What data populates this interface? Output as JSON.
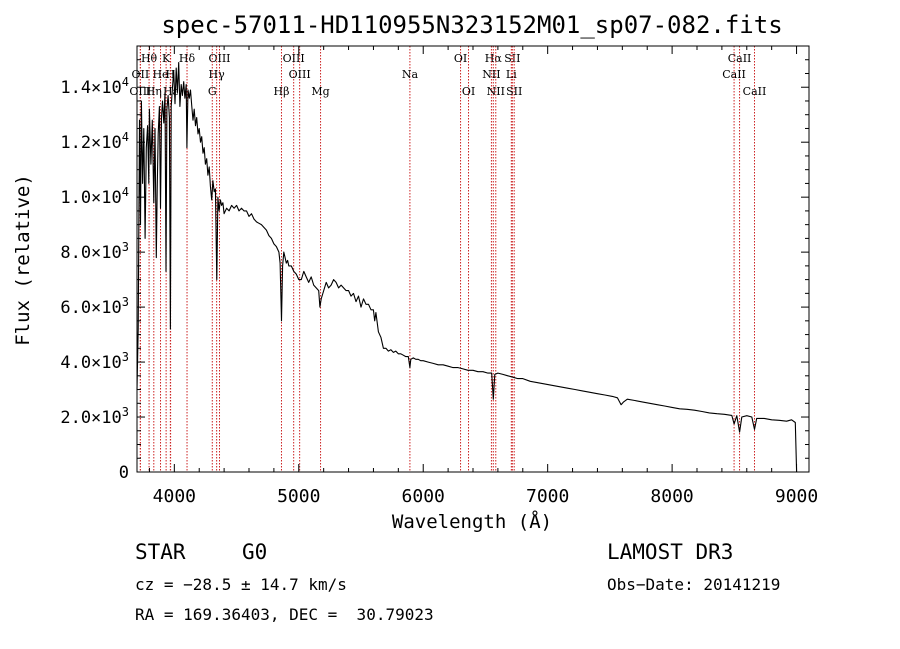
{
  "chart_data": {
    "type": "line",
    "title": "spec-57011-HD110955N323152M01_sp07-082.fits",
    "xlabel": "Wavelength (Å)",
    "ylabel": "Flux (relative)",
    "xlim": [
      3700,
      9100
    ],
    "ylim": [
      0,
      15500
    ],
    "x_ticks": [
      4000,
      5000,
      6000,
      7000,
      8000,
      9000
    ],
    "y_ticks": [
      {
        "value": 0,
        "mant": "0",
        "exp": ""
      },
      {
        "value": 2000,
        "mant": "2.0×10",
        "exp": "3"
      },
      {
        "value": 4000,
        "mant": "4.0×10",
        "exp": "3"
      },
      {
        "value": 6000,
        "mant": "6.0×10",
        "exp": "3"
      },
      {
        "value": 8000,
        "mant": "8.0×10",
        "exp": "3"
      },
      {
        "value": 10000,
        "mant": "1.0×10",
        "exp": "4"
      },
      {
        "value": 12000,
        "mant": "1.2×10",
        "exp": "4"
      },
      {
        "value": 14000,
        "mant": "1.4×10",
        "exp": "4"
      }
    ],
    "series": [
      {
        "name": "flux",
        "points": [
          [
            3700,
            3000
          ],
          [
            3710,
            5200
          ],
          [
            3720,
            12800
          ],
          [
            3728,
            9000
          ],
          [
            3735,
            13500
          ],
          [
            3745,
            10500
          ],
          [
            3755,
            12500
          ],
          [
            3765,
            8500
          ],
          [
            3775,
            11800
          ],
          [
            3785,
            12600
          ],
          [
            3795,
            10500
          ],
          [
            3800,
            13200
          ],
          [
            3812,
            11200
          ],
          [
            3823,
            12800
          ],
          [
            3835,
            9800
          ],
          [
            3845,
            12500
          ],
          [
            3855,
            7800
          ],
          [
            3862,
            10300
          ],
          [
            3870,
            12300
          ],
          [
            3880,
            13300
          ],
          [
            3889,
            9600
          ],
          [
            3897,
            12900
          ],
          [
            3905,
            13500
          ],
          [
            3915,
            12700
          ],
          [
            3925,
            13800
          ],
          [
            3933,
            7300
          ],
          [
            3940,
            13200
          ],
          [
            3950,
            13700
          ],
          [
            3960,
            12900
          ],
          [
            3968,
            5200
          ],
          [
            3975,
            13300
          ],
          [
            3985,
            14000
          ],
          [
            3995,
            14600
          ],
          [
            4005,
            13400
          ],
          [
            4015,
            14700
          ],
          [
            4025,
            13800
          ],
          [
            4035,
            14900
          ],
          [
            4045,
            13300
          ],
          [
            4055,
            14100
          ],
          [
            4065,
            13700
          ],
          [
            4075,
            14200
          ],
          [
            4085,
            13600
          ],
          [
            4095,
            14100
          ],
          [
            4101,
            11800
          ],
          [
            4110,
            13900
          ],
          [
            4120,
            13600
          ],
          [
            4130,
            13900
          ],
          [
            4140,
            13300
          ],
          [
            4150,
            12800
          ],
          [
            4160,
            13200
          ],
          [
            4170,
            12600
          ],
          [
            4180,
            12900
          ],
          [
            4190,
            12300
          ],
          [
            4200,
            12500
          ],
          [
            4210,
            12000
          ],
          [
            4220,
            12200
          ],
          [
            4230,
            11600
          ],
          [
            4240,
            11800
          ],
          [
            4250,
            11200
          ],
          [
            4260,
            11400
          ],
          [
            4270,
            10800
          ],
          [
            4280,
            11100
          ],
          [
            4290,
            10400
          ],
          [
            4300,
            9900
          ],
          [
            4310,
            10600
          ],
          [
            4320,
            10200
          ],
          [
            4330,
            10300
          ],
          [
            4341,
            7000
          ],
          [
            4350,
            10000
          ],
          [
            4360,
            9500
          ],
          [
            4370,
            9900
          ],
          [
            4380,
            9700
          ],
          [
            4390,
            9800
          ],
          [
            4400,
            9400
          ],
          [
            4420,
            9600
          ],
          [
            4440,
            9500
          ],
          [
            4460,
            9700
          ],
          [
            4480,
            9600
          ],
          [
            4500,
            9700
          ],
          [
            4520,
            9500
          ],
          [
            4540,
            9600
          ],
          [
            4560,
            9500
          ],
          [
            4580,
            9500
          ],
          [
            4600,
            9300
          ],
          [
            4620,
            9400
          ],
          [
            4640,
            9200
          ],
          [
            4660,
            9100
          ],
          [
            4680,
            9050
          ],
          [
            4700,
            9000
          ],
          [
            4720,
            8900
          ],
          [
            4740,
            8800
          ],
          [
            4760,
            8600
          ],
          [
            4780,
            8500
          ],
          [
            4800,
            8300
          ],
          [
            4820,
            8200
          ],
          [
            4840,
            8000
          ],
          [
            4850,
            7600
          ],
          [
            4861,
            5500
          ],
          [
            4870,
            7500
          ],
          [
            4880,
            8000
          ],
          [
            4890,
            7800
          ],
          [
            4900,
            7600
          ],
          [
            4910,
            7700
          ],
          [
            4920,
            7500
          ],
          [
            4940,
            7500
          ],
          [
            4960,
            7300
          ],
          [
            4980,
            7200
          ],
          [
            5000,
            7000
          ],
          [
            5020,
            7000
          ],
          [
            5040,
            7300
          ],
          [
            5060,
            7100
          ],
          [
            5080,
            6900
          ],
          [
            5100,
            7100
          ],
          [
            5120,
            6800
          ],
          [
            5140,
            6700
          ],
          [
            5160,
            6600
          ],
          [
            5170,
            6000
          ],
          [
            5180,
            6300
          ],
          [
            5200,
            6600
          ],
          [
            5220,
            6900
          ],
          [
            5240,
            6700
          ],
          [
            5260,
            6800
          ],
          [
            5280,
            7000
          ],
          [
            5300,
            6900
          ],
          [
            5320,
            6700
          ],
          [
            5340,
            6800
          ],
          [
            5360,
            6700
          ],
          [
            5380,
            6600
          ],
          [
            5400,
            6600
          ],
          [
            5420,
            6400
          ],
          [
            5440,
            6500
          ],
          [
            5460,
            6200
          ],
          [
            5480,
            6400
          ],
          [
            5500,
            6000
          ],
          [
            5520,
            6300
          ],
          [
            5540,
            6100
          ],
          [
            5560,
            6100
          ],
          [
            5580,
            5900
          ],
          [
            5600,
            5900
          ],
          [
            5610,
            5500
          ],
          [
            5620,
            5800
          ],
          [
            5640,
            5100
          ],
          [
            5660,
            4900
          ],
          [
            5680,
            4500
          ],
          [
            5700,
            4500
          ],
          [
            5720,
            4400
          ],
          [
            5740,
            4450
          ],
          [
            5760,
            4350
          ],
          [
            5780,
            4400
          ],
          [
            5800,
            4300
          ],
          [
            5820,
            4300
          ],
          [
            5840,
            4250
          ],
          [
            5860,
            4200
          ],
          [
            5880,
            4200
          ],
          [
            5893,
            3800
          ],
          [
            5900,
            4100
          ],
          [
            5920,
            4150
          ],
          [
            5940,
            4100
          ],
          [
            5960,
            4100
          ],
          [
            5980,
            4050
          ],
          [
            6000,
            4050
          ],
          [
            6040,
            4000
          ],
          [
            6080,
            3950
          ],
          [
            6120,
            3900
          ],
          [
            6160,
            3900
          ],
          [
            6200,
            3850
          ],
          [
            6240,
            3800
          ],
          [
            6280,
            3800
          ],
          [
            6320,
            3750
          ],
          [
            6360,
            3700
          ],
          [
            6400,
            3700
          ],
          [
            6440,
            3650
          ],
          [
            6480,
            3650
          ],
          [
            6520,
            3600
          ],
          [
            6550,
            3600
          ],
          [
            6563,
            2650
          ],
          [
            6575,
            3550
          ],
          [
            6600,
            3600
          ],
          [
            6640,
            3550
          ],
          [
            6680,
            3500
          ],
          [
            6720,
            3450
          ],
          [
            6760,
            3400
          ],
          [
            6800,
            3400
          ],
          [
            6860,
            3300
          ],
          [
            6920,
            3250
          ],
          [
            6980,
            3200
          ],
          [
            7040,
            3150
          ],
          [
            7100,
            3100
          ],
          [
            7160,
            3050
          ],
          [
            7220,
            3000
          ],
          [
            7280,
            2950
          ],
          [
            7340,
            2900
          ],
          [
            7400,
            2850
          ],
          [
            7460,
            2800
          ],
          [
            7520,
            2750
          ],
          [
            7560,
            2700
          ],
          [
            7590,
            2450
          ],
          [
            7610,
            2550
          ],
          [
            7640,
            2650
          ],
          [
            7700,
            2600
          ],
          [
            7760,
            2550
          ],
          [
            7820,
            2500
          ],
          [
            7880,
            2450
          ],
          [
            7940,
            2400
          ],
          [
            8000,
            2350
          ],
          [
            8060,
            2300
          ],
          [
            8120,
            2280
          ],
          [
            8180,
            2250
          ],
          [
            8240,
            2200
          ],
          [
            8300,
            2150
          ],
          [
            8360,
            2120
          ],
          [
            8420,
            2100
          ],
          [
            8480,
            2060
          ],
          [
            8498,
            1750
          ],
          [
            8520,
            2050
          ],
          [
            8542,
            1450
          ],
          [
            8560,
            2000
          ],
          [
            8600,
            2050
          ],
          [
            8640,
            2000
          ],
          [
            8662,
            1550
          ],
          [
            8680,
            1950
          ],
          [
            8740,
            1950
          ],
          [
            8800,
            1900
          ],
          [
            8860,
            1880
          ],
          [
            8920,
            1850
          ],
          [
            8960,
            1900
          ],
          [
            8990,
            1800
          ],
          [
            9000,
            0
          ]
        ]
      }
    ],
    "line_markers": [
      {
        "label": "Hθ",
        "wavelength": 3797,
        "row": 1
      },
      {
        "label": "K",
        "wavelength": 3934,
        "row": 1
      },
      {
        "label": "Hδ",
        "wavelength": 4102,
        "row": 1
      },
      {
        "label": "OIII",
        "wavelength": 4363,
        "row": 1
      },
      {
        "label": "OIII",
        "wavelength": 4959,
        "row": 1
      },
      {
        "label": "OI",
        "wavelength": 6300,
        "row": 1
      },
      {
        "label": "Hα",
        "wavelength": 6563,
        "row": 1
      },
      {
        "label": "SII",
        "wavelength": 6716,
        "row": 1
      },
      {
        "label": "CaII",
        "wavelength": 8542,
        "row": 1
      },
      {
        "label": "OII",
        "wavelength": 3727,
        "row": 2
      },
      {
        "label": "He",
        "wavelength": 3889,
        "row": 2
      },
      {
        "label": "H",
        "wavelength": 3968,
        "row": 2
      },
      {
        "label": "Hγ",
        "wavelength": 4340,
        "row": 2
      },
      {
        "label": "OIII",
        "wavelength": 5007,
        "row": 2
      },
      {
        "label": "Na",
        "wavelength": 5893,
        "row": 2
      },
      {
        "label": "NII",
        "wavelength": 6548,
        "row": 2
      },
      {
        "label": "Li",
        "wavelength": 6708,
        "row": 2
      },
      {
        "label": "CaII",
        "wavelength": 8498,
        "row": 2
      },
      {
        "label": "OIII",
        "wavelength": 3727,
        "row": 3
      },
      {
        "label": "Hη",
        "wavelength": 3835,
        "row": 3
      },
      {
        "label": "Hε",
        "wavelength": 3970,
        "row": 3
      },
      {
        "label": "G",
        "wavelength": 4305,
        "row": 3
      },
      {
        "label": "Hβ",
        "wavelength": 4861,
        "row": 3
      },
      {
        "label": "Mg",
        "wavelength": 5175,
        "row": 3
      },
      {
        "label": "OI",
        "wavelength": 6364,
        "row": 3
      },
      {
        "label": "NII",
        "wavelength": 6583,
        "row": 3
      },
      {
        "label": "SII",
        "wavelength": 6731,
        "row": 3
      },
      {
        "label": "CaII",
        "wavelength": 8662,
        "row": 3
      }
    ],
    "line_color": "#cc2222",
    "grid": false,
    "legend": "none"
  },
  "info": {
    "object_class": "STAR",
    "subclass": "G0",
    "survey": "LAMOST DR3",
    "cz": "cz = −28.5 ± 14.7 km/s",
    "obs_date": "Obs−Date: 20141219",
    "coords": "RA = 169.36403, DEC =  30.79023"
  }
}
